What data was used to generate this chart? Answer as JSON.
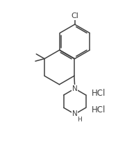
{
  "bg_color": "#ffffff",
  "line_color": "#404040",
  "line_width": 1.1,
  "font_size_atom": 7.0,
  "font_size_hcl": 8.5,
  "figsize": [
    1.93,
    2.22
  ],
  "dpi": 100,
  "xlim": [
    -0.15,
    1.05
  ],
  "ylim": [
    -0.05,
    1.15
  ]
}
